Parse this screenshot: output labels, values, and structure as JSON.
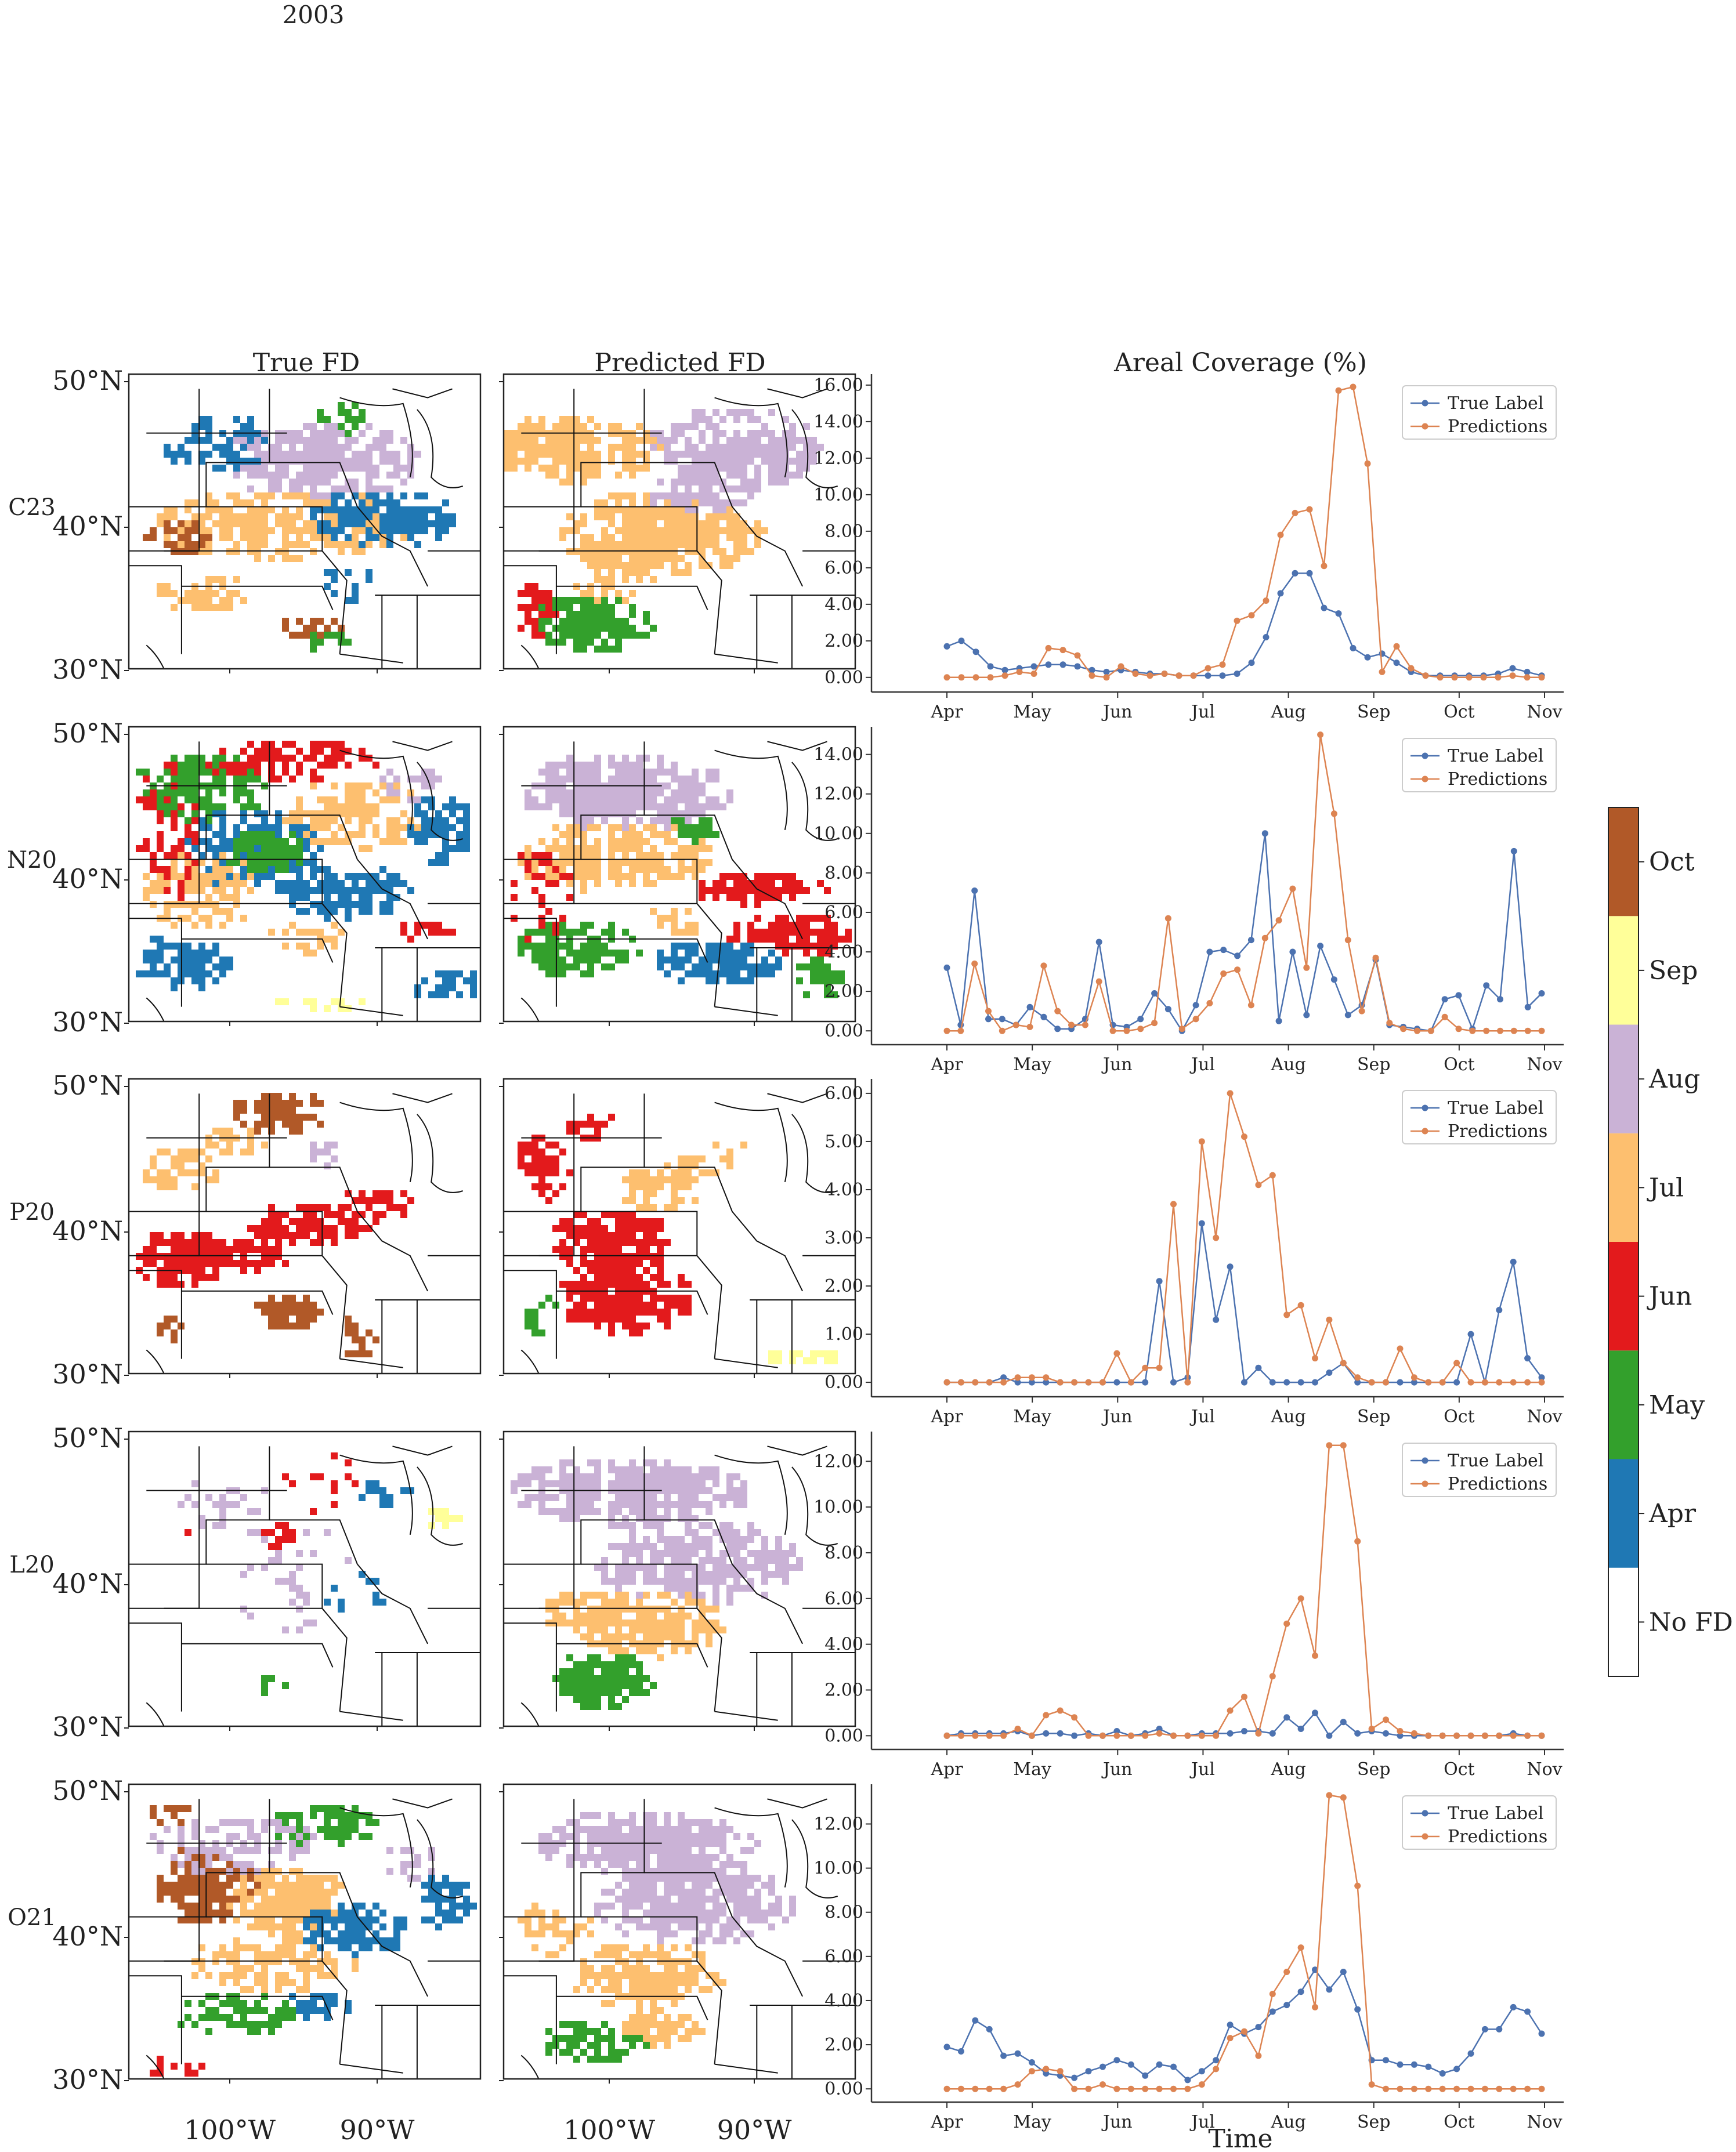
{
  "figure": {
    "year": "2003",
    "column_titles": [
      "True FD",
      "Predicted FD",
      "Areal Coverage (%)"
    ],
    "lat_labels": [
      "50°N",
      "40°N",
      "30°N"
    ],
    "lon_labels": [
      "100°W",
      "90°W"
    ],
    "xlabel": "Time"
  },
  "colorbar": {
    "categories": [
      {
        "label": "No FD",
        "color": "#ffffff"
      },
      {
        "label": "Apr",
        "color": "#1f78b4"
      },
      {
        "label": "May",
        "color": "#33a02c"
      },
      {
        "label": "Jun",
        "color": "#e31a1c"
      },
      {
        "label": "Jul",
        "color": "#fdbf6f"
      },
      {
        "label": "Aug",
        "color": "#cab2d6"
      },
      {
        "label": "Sep",
        "color": "#ffff99"
      },
      {
        "label": "Oct",
        "color": "#b15928"
      }
    ]
  },
  "chart_data": {
    "type": "line",
    "x_tick_labels": [
      "Apr",
      "May",
      "Jun",
      "Jul",
      "Aug",
      "Sep",
      "Oct",
      "Nov"
    ],
    "legend": [
      "True Label",
      "Predictions"
    ],
    "legend_position": "top-right",
    "colors": {
      "True Label": "#4c72b0",
      "Predictions": "#dd8452"
    },
    "panels": [
      {
        "row_label": "C23",
        "yticks": [
          "0.00",
          "2.00",
          "4.00",
          "6.00",
          "8.00",
          "10.00",
          "12.00",
          "14.00",
          "16.00"
        ],
        "ylim": [
          -0.8,
          16.6
        ],
        "series": [
          {
            "name": "True Label",
            "values": [
              1.7,
              2.0,
              1.4,
              0.6,
              0.4,
              0.5,
              0.6,
              0.7,
              0.7,
              0.6,
              0.4,
              0.3,
              0.4,
              0.3,
              0.2,
              0.2,
              0.1,
              0.1,
              0.1,
              0.1,
              0.2,
              0.8,
              2.2,
              4.6,
              5.7,
              5.7,
              3.8,
              3.5,
              1.6,
              1.1,
              1.3,
              0.8,
              0.3,
              0.1,
              0.1,
              0.1,
              0.1,
              0.1,
              0.2,
              0.5,
              0.3,
              0.1
            ]
          },
          {
            "name": "Predictions",
            "values": [
              0.0,
              0.0,
              0.0,
              0.0,
              0.1,
              0.3,
              0.2,
              1.6,
              1.5,
              1.2,
              0.1,
              0.0,
              0.6,
              0.2,
              0.1,
              0.2,
              0.1,
              0.1,
              0.5,
              0.7,
              3.1,
              3.4,
              4.2,
              7.8,
              9.0,
              9.2,
              6.1,
              15.7,
              15.9,
              11.7,
              0.3,
              1.7,
              0.5,
              0.1,
              0.0,
              0.0,
              0.0,
              0.0,
              0.0,
              0.1,
              0.0,
              0.0
            ]
          }
        ]
      },
      {
        "row_label": "N20",
        "yticks": [
          "0.00",
          "2.00",
          "4.00",
          "6.00",
          "8.00",
          "10.00",
          "12.00",
          "14.00"
        ],
        "ylim": [
          -0.7,
          15.4
        ],
        "series": [
          {
            "name": "True Label",
            "values": [
              3.2,
              0.3,
              7.1,
              0.6,
              0.6,
              0.3,
              1.2,
              0.7,
              0.1,
              0.1,
              0.6,
              4.5,
              0.3,
              0.2,
              0.6,
              1.9,
              1.1,
              0.0,
              1.3,
              4.0,
              4.1,
              3.8,
              4.6,
              10.0,
              0.5,
              4.0,
              0.8,
              4.3,
              2.6,
              0.8,
              1.3,
              3.6,
              0.3,
              0.2,
              0.1,
              0.0,
              1.6,
              1.8,
              0.1,
              2.3,
              1.6,
              9.1,
              1.2,
              1.9
            ]
          },
          {
            "name": "Predictions",
            "values": [
              0.0,
              0.0,
              3.4,
              1.0,
              0.0,
              0.3,
              0.2,
              3.3,
              1.0,
              0.3,
              0.3,
              2.5,
              0.0,
              0.0,
              0.1,
              0.4,
              5.7,
              0.1,
              0.6,
              1.4,
              2.9,
              3.1,
              1.3,
              4.7,
              5.6,
              7.2,
              3.2,
              15.0,
              11.0,
              4.6,
              1.0,
              3.7,
              0.4,
              0.1,
              0.0,
              0.0,
              0.7,
              0.1,
              0.0,
              0.0,
              0.0,
              0.0,
              0.0,
              0.0
            ]
          }
        ]
      },
      {
        "row_label": "P20",
        "yticks": [
          "0.00",
          "1.00",
          "2.00",
          "3.00",
          "4.00",
          "5.00",
          "6.00"
        ],
        "ylim": [
          -0.3,
          6.3
        ],
        "series": [
          {
            "name": "True Label",
            "values": [
              0.0,
              0.0,
              0.0,
              0.0,
              0.1,
              0.0,
              0.0,
              0.0,
              0.0,
              0.0,
              0.0,
              0.0,
              0.0,
              0.0,
              0.0,
              2.1,
              0.0,
              0.1,
              3.3,
              1.3,
              2.4,
              0.0,
              0.3,
              0.0,
              0.0,
              0.0,
              0.0,
              0.2,
              0.4,
              0.0,
              0.0,
              0.0,
              0.0,
              0.0,
              0.0,
              0.0,
              0.0,
              1.0,
              0.0,
              1.5,
              2.5,
              0.5,
              0.1
            ]
          },
          {
            "name": "Predictions",
            "values": [
              0.0,
              0.0,
              0.0,
              0.0,
              0.0,
              0.1,
              0.1,
              0.1,
              0.0,
              0.0,
              0.0,
              0.0,
              0.6,
              0.0,
              0.3,
              0.3,
              3.7,
              0.0,
              5.0,
              3.0,
              6.0,
              5.1,
              4.1,
              4.3,
              1.4,
              1.6,
              0.5,
              1.3,
              0.4,
              0.1,
              0.0,
              0.0,
              0.7,
              0.1,
              0.0,
              0.0,
              0.4,
              0.0,
              0.0,
              0.0,
              0.0,
              0.0,
              0.0
            ]
          }
        ]
      },
      {
        "row_label": "L20",
        "yticks": [
          "0.00",
          "2.00",
          "4.00",
          "6.00",
          "8.00",
          "10.00",
          "12.00"
        ],
        "ylim": [
          -0.6,
          13.3
        ],
        "series": [
          {
            "name": "True Label",
            "values": [
              0.0,
              0.1,
              0.1,
              0.1,
              0.1,
              0.2,
              0.0,
              0.1,
              0.1,
              0.0,
              0.1,
              0.0,
              0.2,
              0.0,
              0.1,
              0.3,
              0.0,
              0.0,
              0.1,
              0.1,
              0.1,
              0.2,
              0.2,
              0.1,
              0.8,
              0.3,
              1.0,
              0.0,
              0.6,
              0.1,
              0.2,
              0.1,
              0.0,
              0.0,
              0.0,
              0.0,
              0.0,
              0.0,
              0.0,
              0.0,
              0.1,
              0.0,
              0.0
            ]
          },
          {
            "name": "Predictions",
            "values": [
              0.0,
              0.0,
              0.0,
              0.0,
              0.0,
              0.3,
              0.0,
              0.9,
              1.1,
              0.8,
              0.0,
              0.0,
              0.0,
              0.0,
              0.0,
              0.1,
              0.0,
              0.0,
              0.0,
              0.0,
              1.1,
              1.7,
              0.1,
              2.6,
              4.9,
              6.0,
              3.5,
              12.7,
              12.7,
              8.5,
              0.3,
              0.7,
              0.2,
              0.1,
              0.0,
              0.0,
              0.0,
              0.0,
              0.0,
              0.0,
              0.0,
              0.0,
              0.0
            ]
          }
        ]
      },
      {
        "row_label": "O21",
        "yticks": [
          "0.00",
          "2.00",
          "4.00",
          "6.00",
          "8.00",
          "10.00",
          "12.00"
        ],
        "ylim": [
          -0.6,
          13.8
        ],
        "series": [
          {
            "name": "True Label",
            "values": [
              1.9,
              1.7,
              3.1,
              2.7,
              1.5,
              1.6,
              1.2,
              0.7,
              0.6,
              0.5,
              0.8,
              1.0,
              1.3,
              1.1,
              0.6,
              1.1,
              1.0,
              0.4,
              0.8,
              1.3,
              2.9,
              2.5,
              2.8,
              3.5,
              3.8,
              4.4,
              5.4,
              4.5,
              5.3,
              3.6,
              1.3,
              1.3,
              1.1,
              1.1,
              1.0,
              0.7,
              0.9,
              1.6,
              2.7,
              2.7,
              3.7,
              3.5,
              2.5
            ]
          },
          {
            "name": "Predictions",
            "values": [
              0.0,
              0.0,
              0.0,
              0.0,
              0.0,
              0.2,
              0.8,
              0.9,
              0.8,
              0.0,
              0.0,
              0.2,
              0.0,
              0.0,
              0.0,
              0.0,
              0.0,
              0.0,
              0.2,
              0.9,
              2.3,
              2.6,
              1.5,
              4.3,
              5.3,
              6.4,
              3.7,
              13.3,
              13.2,
              9.2,
              0.2,
              0.0,
              0.0,
              0.0,
              0.0,
              0.0,
              0.0,
              0.0,
              0.0,
              0.0,
              0.0,
              0.0,
              0.0
            ]
          }
        ]
      }
    ]
  }
}
